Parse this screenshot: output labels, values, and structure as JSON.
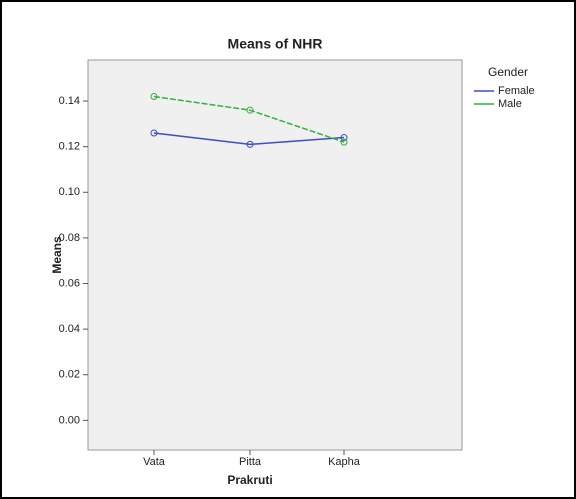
{
  "chart_data": {
    "type": "line",
    "title": "Means of NHR",
    "x_label": "Prakruti",
    "y_label": "Means",
    "legend_title": "Gender",
    "legend": "right",
    "categories": [
      "Vata",
      "Pitta",
      "Kapha"
    ],
    "series": [
      {
        "name": "Female",
        "color": "#3b4fbf",
        "values": [
          0.126,
          0.121,
          0.124
        ]
      },
      {
        "name": "Male",
        "color": "#33b040",
        "values": [
          0.142,
          0.136,
          0.122
        ]
      }
    ],
    "ylim": [
      -0.013,
      0.158
    ],
    "yticks": [
      {
        "value": 0,
        "label": "0.00"
      },
      {
        "value": 0.02,
        "label": "0.02"
      },
      {
        "value": 0.04,
        "label": "0.04"
      },
      {
        "value": 0.06,
        "label": "0.06"
      },
      {
        "value": 0.08,
        "label": "0.08"
      },
      {
        "value": 0.1,
        "label": "0.10"
      },
      {
        "value": 0.12,
        "label": "0.12"
      },
      {
        "value": 0.14,
        "label": "0.14"
      }
    ],
    "grid": false
  }
}
